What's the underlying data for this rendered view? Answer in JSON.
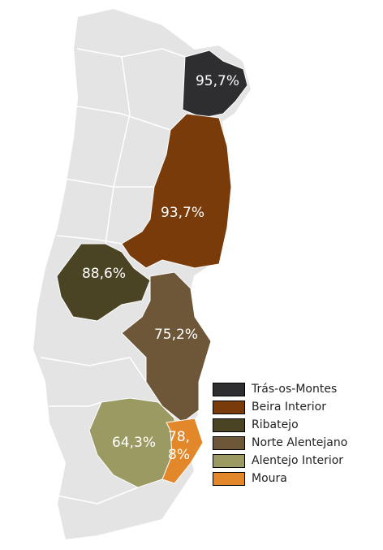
{
  "map": {
    "regions": [
      {
        "name": "Trás-os-Montes",
        "color": "#2e2e30",
        "value": 95.7,
        "value_label": "95,7%"
      },
      {
        "name": "Beira Interior",
        "color": "#7a3b0b",
        "value": 93.7,
        "value_label": "93,7%"
      },
      {
        "name": "Ribatejo",
        "color": "#4a4424",
        "value": 88.6,
        "value_label": "88,6%"
      },
      {
        "name": "Norte Alentejano",
        "color": "#6e5638",
        "value": 75.2,
        "value_label": "75,2%"
      },
      {
        "name": "Alentejo Interior",
        "color": "#9b9a62",
        "value": 64.3,
        "value_label": "64,3%"
      },
      {
        "name": "Moura",
        "color": "#e2872a",
        "value": 78.8,
        "value_label": "78,8%"
      }
    ]
  }
}
